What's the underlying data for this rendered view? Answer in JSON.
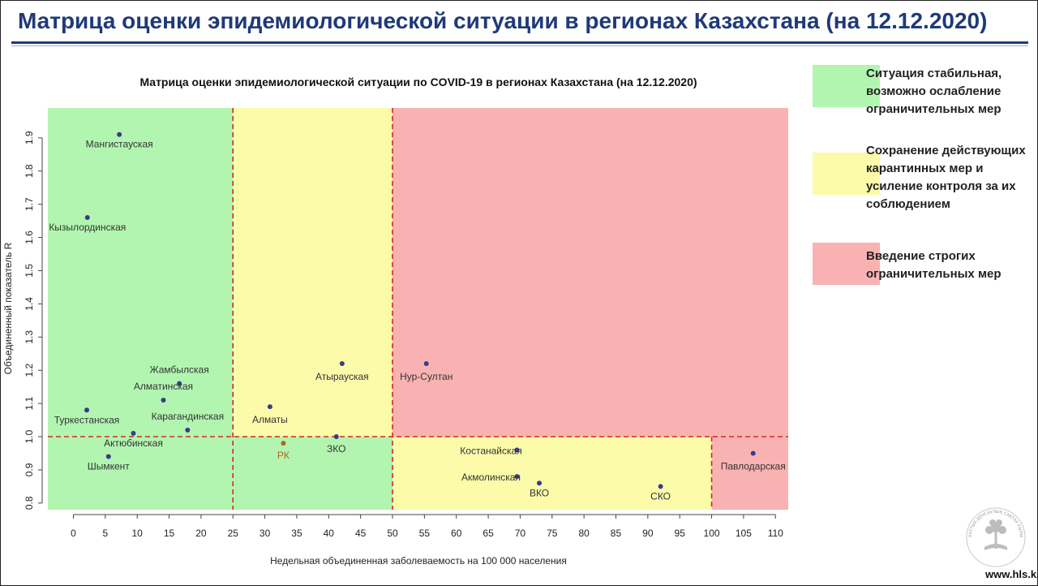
{
  "page": {
    "title": "Матрица оценки эпидемиологической ситуации в регионах Казахстана (на 12.12.2020)",
    "logo_text": "www.hls.kz",
    "logo_ring_text": "ҰЛТТЫҚ ДЕНСАУЛЫҚ САҚТАУ ҒЫЛЫМИ ОРТАЛЫҒЫ"
  },
  "legend": [
    {
      "label": "Ситуация стабильная, возможно ослабление ограничительных мер",
      "lines": [
        "Ситуация стабильная,",
        "возможно ослабление",
        "ограничительных мер"
      ],
      "color": "#b2f5b0"
    },
    {
      "label": "Сохранение действующих карантинных мер и усиление контроля за их соблюдением",
      "lines": [
        "Сохранение действующих",
        "карантинных мер и",
        "усиление контроля за их",
        "соблюдением"
      ],
      "color": "#fbfbaa"
    },
    {
      "label": "Введение строгих ограничительных мер",
      "lines": [
        "Введение строгих",
        "ограничительных мер"
      ],
      "color": "#f9b2b2"
    }
  ],
  "chart_data": {
    "type": "scatter",
    "title": "Матрица оценки эпидемиологической ситуации по COVID-19 в регионах Казахстана (на 12.12.2020)",
    "xlabel": "Недельная объединенная заболеваемость на 100 000 населения",
    "ylabel": "Объединенный показатель R",
    "xlim": [
      -4,
      112
    ],
    "ylim": [
      0.78,
      1.99
    ],
    "xticks": [
      0,
      5,
      10,
      15,
      20,
      25,
      30,
      35,
      40,
      45,
      50,
      55,
      60,
      65,
      70,
      75,
      80,
      85,
      90,
      95,
      100,
      105,
      110
    ],
    "yticks": [
      0.8,
      0.9,
      1.0,
      1.1,
      1.2,
      1.3,
      1.4,
      1.5,
      1.6,
      1.7,
      1.8,
      1.9
    ],
    "ytick_labels": [
      "0.8",
      "0.9",
      "1.0",
      "1.1",
      "1.2",
      "1.3",
      "1.4",
      "1.5",
      "1.6",
      "1.7",
      "1.8",
      "1.9"
    ],
    "thresholds": {
      "x": [
        25,
        50,
        100
      ],
      "y": 1.0
    },
    "zones": [
      {
        "x": [
          -4,
          25
        ],
        "y": [
          1.0,
          1.99
        ],
        "color": "#b2f5b0"
      },
      {
        "x": [
          25,
          50
        ],
        "y": [
          1.0,
          1.99
        ],
        "color": "#fbfbaa"
      },
      {
        "x": [
          50,
          112
        ],
        "y": [
          1.0,
          1.99
        ],
        "color": "#f9b2b2"
      },
      {
        "x": [
          -4,
          50
        ],
        "y": [
          0.78,
          1.0
        ],
        "color": "#b2f5b0"
      },
      {
        "x": [
          50,
          100
        ],
        "y": [
          0.78,
          1.0
        ],
        "color": "#fbfbaa"
      },
      {
        "x": [
          100,
          112
        ],
        "y": [
          0.78,
          1.0
        ],
        "color": "#f9b2b2"
      }
    ],
    "points": [
      {
        "name": "Мангистауская",
        "x": 7.2,
        "y": 1.91,
        "label_dx": 0,
        "label_dy": 16,
        "color": "#3a3a8c"
      },
      {
        "name": "Кызылординская",
        "x": 2.2,
        "y": 1.66,
        "label_dx": 0,
        "label_dy": 16,
        "color": "#3a3a8c"
      },
      {
        "name": "Жамбылская",
        "x": 16.6,
        "y": 1.16,
        "label_dx": 0,
        "label_dy": -13,
        "color": "#3a3a8c"
      },
      {
        "name": "Алматинская",
        "x": 14.1,
        "y": 1.11,
        "label_dx": 0,
        "label_dy": -13,
        "color": "#3a3a8c"
      },
      {
        "name": "Туркестанская",
        "x": 2.1,
        "y": 1.08,
        "label_dx": 0,
        "label_dy": 16,
        "color": "#3a3a8c"
      },
      {
        "name": "Карагандинская",
        "x": 17.9,
        "y": 1.02,
        "label_dx": 0,
        "label_dy": -13,
        "color": "#3a3a8c"
      },
      {
        "name": "Актюбинская",
        "x": 9.4,
        "y": 1.01,
        "label_dx": 0,
        "label_dy": 16,
        "color": "#3a3a8c"
      },
      {
        "name": "Шымкент",
        "x": 5.5,
        "y": 0.94,
        "label_dx": 0,
        "label_dy": 16,
        "color": "#3a3a8c"
      },
      {
        "name": "Алматы",
        "x": 30.8,
        "y": 1.09,
        "label_dx": 0,
        "label_dy": 20,
        "color": "#3a3a8c"
      },
      {
        "name": "РК",
        "x": 32.9,
        "y": 0.98,
        "label_dx": 0,
        "label_dy": 19,
        "color": "#b06a1a",
        "label_color": "#b06a1a"
      },
      {
        "name": "ЗКО",
        "x": 41.2,
        "y": 1.0,
        "label_dx": 0,
        "label_dy": 19,
        "color": "#3a3a8c"
      },
      {
        "name": "Атырауская",
        "x": 42.1,
        "y": 1.22,
        "label_dx": 0,
        "label_dy": 20,
        "color": "#3a3a8c"
      },
      {
        "name": "Нур-Султан",
        "x": 55.3,
        "y": 1.22,
        "label_dx": 0,
        "label_dy": 20,
        "color": "#3a3a8c"
      },
      {
        "name": "Костанайская",
        "x": 69.5,
        "y": 0.96,
        "label_dx": -32,
        "label_dy": 5,
        "color": "#3a3a8c"
      },
      {
        "name": "Акмолинская",
        "x": 69.5,
        "y": 0.88,
        "label_dx": -32,
        "label_dy": 5,
        "color": "#3a3a8c"
      },
      {
        "name": "ВКО",
        "x": 73.0,
        "y": 0.86,
        "label_dx": 0,
        "label_dy": 16,
        "color": "#3a3a8c"
      },
      {
        "name": "СКО",
        "x": 92.0,
        "y": 0.85,
        "label_dx": 0,
        "label_dy": 16,
        "color": "#3a3a8c"
      },
      {
        "name": "Павлодарская",
        "x": 106.5,
        "y": 0.95,
        "label_dx": 0,
        "label_dy": 20,
        "color": "#3a3a8c"
      }
    ]
  }
}
